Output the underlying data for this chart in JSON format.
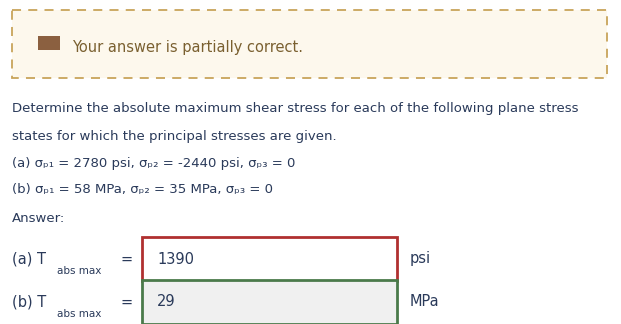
{
  "background_color": "#ffffff",
  "banner_bg": "#fdf8ed",
  "banner_border_color": "#c8a45a",
  "banner_icon_color": "#8B6040",
  "banner_text": "Your answer is partially correct.",
  "banner_text_color": "#7a6030",
  "question_text_line1": "Determine the absolute maximum shear stress for each of the following plane stress",
  "question_text_line2": "states for which the principal stresses are given.",
  "question_a": "(a) σₚ₁ = 2780 psi, σₚ₂ = -2440 psi, σₚ₃ = 0",
  "question_b": "(b) σₚ₁ = 58 MPa, σₚ₂ = 35 MPa, σₚ₃ = 0",
  "answer_label": "Answer:",
  "answer_a_prefix": "(a) T",
  "answer_a_subscript": "abs max",
  "answer_a_value": "1390",
  "answer_a_unit": "psi",
  "answer_a_box_border": "#b03030",
  "answer_b_prefix": "(b) T",
  "answer_b_subscript": "abs max",
  "answer_b_value": "29",
  "answer_b_unit": "MPa",
  "answer_b_box_border": "#4a7a4a",
  "answer_box_bg": "#f0f0f0",
  "text_color": "#2a3a5a",
  "font_size_main": 9.5,
  "font_size_banner": 10.5,
  "font_size_subscript": 7.5,
  "font_size_answer": 10.5,
  "font_size_answer_value": 10.5
}
